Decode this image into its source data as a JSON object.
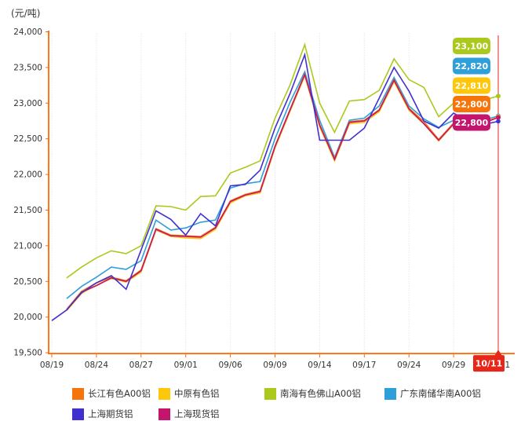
{
  "chart_data": {
    "type": "line",
    "title": "(元/吨)",
    "ylim": [
      19500,
      24000
    ],
    "y_step": 500,
    "x_tick_labels": [
      "08/19",
      "08/24",
      "08/27",
      "09/01",
      "09/06",
      "09/09",
      "09/14",
      "09/17",
      "09/24",
      "09/29",
      "10/11"
    ],
    "highlighted_x_label": "10/11",
    "dates": [
      "08/19",
      "08/20",
      "08/23",
      "08/24",
      "08/25",
      "08/26",
      "08/27",
      "08/30",
      "08/31",
      "09/01",
      "09/02",
      "09/03",
      "09/06",
      "09/07",
      "09/08",
      "09/09",
      "09/10",
      "09/13",
      "09/14",
      "09/15",
      "09/16",
      "09/17",
      "09/22",
      "09/23",
      "09/24",
      "09/27",
      "09/28",
      "09/29",
      "09/30",
      "10/08",
      "10/11"
    ],
    "series": [
      {
        "name": "长江有色A00铝",
        "color": "#F5750A",
        "badge": "22,800",
        "values": [
          null,
          20110,
          20360,
          20480,
          20560,
          20510,
          20660,
          21240,
          21150,
          21140,
          21130,
          21260,
          21630,
          21720,
          21770,
          22400,
          22910,
          23410,
          22700,
          22220,
          22740,
          22760,
          22910,
          23330,
          22930,
          22740,
          22490,
          22720,
          22650,
          22730,
          22800
        ]
      },
      {
        "name": "中原有色铝",
        "color": "#FFC70A",
        "badge": "22,810",
        "values": [
          null,
          20090,
          20330,
          20450,
          20540,
          20490,
          20630,
          21220,
          21130,
          21110,
          21100,
          21230,
          21600,
          21700,
          21740,
          22370,
          22880,
          23380,
          22670,
          22190,
          22710,
          22730,
          22880,
          23300,
          22900,
          22710,
          22470,
          22700,
          22640,
          22720,
          22810
        ]
      },
      {
        "name": "南海有色佛山A00铝",
        "color": "#ABC91C",
        "badge": "23,100",
        "values": [
          null,
          20550,
          20700,
          20830,
          20930,
          20890,
          21000,
          21560,
          21550,
          21500,
          21690,
          21700,
          22020,
          22100,
          22190,
          22790,
          23250,
          23820,
          23000,
          22590,
          23030,
          23050,
          23180,
          23620,
          23330,
          23220,
          22810,
          23000,
          22950,
          23040,
          23100
        ]
      },
      {
        "name": "广东南储华南A00铝",
        "color": "#2E9FD8",
        "badge": "22,820",
        "values": [
          null,
          20260,
          20430,
          20560,
          20700,
          20670,
          20790,
          21360,
          21220,
          21250,
          21330,
          21360,
          21810,
          21870,
          21900,
          22500,
          23010,
          23440,
          22760,
          22240,
          22760,
          22790,
          22960,
          23360,
          22960,
          22780,
          22660,
          22760,
          22700,
          22760,
          22820
        ]
      },
      {
        "name": "上海期货铝",
        "color": "#4130D0",
        "badge": null,
        "values": [
          19950,
          20100,
          20340,
          20480,
          20580,
          20390,
          20940,
          21490,
          21370,
          21150,
          21450,
          21280,
          21840,
          21860,
          22060,
          22650,
          23130,
          23680,
          22480,
          22480,
          22480,
          22650,
          23070,
          23500,
          23170,
          22750,
          22650,
          22860,
          22740,
          22700,
          22745
        ]
      },
      {
        "name": "上海现货铝",
        "color": "#C4156E",
        "badge": "22,800",
        "values": [
          null,
          20100,
          20350,
          20440,
          20550,
          20500,
          20650,
          21230,
          21140,
          21130,
          21120,
          21250,
          21620,
          21710,
          21760,
          22390,
          22900,
          23400,
          22690,
          22210,
          22730,
          22750,
          22900,
          23320,
          22920,
          22710,
          22480,
          22710,
          22640,
          22720,
          22800
        ]
      }
    ]
  },
  "colors": {
    "axis": "#FF6600",
    "highlight": "#E8271B",
    "grid": "#DBDBDB",
    "text": "#333333",
    "badge_text": "#FFFFFF"
  }
}
